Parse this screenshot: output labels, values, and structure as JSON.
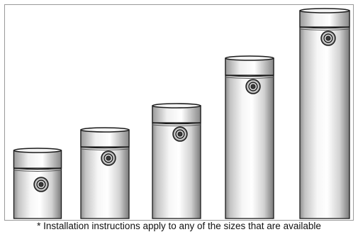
{
  "figure": {
    "caption": "* Installation instructions apply to any of the sizes that are available",
    "subject_icon": "standoff-cylinder-icon",
    "item_count": 5,
    "colors": {
      "body": "#d8d8d8",
      "outline": "#1c1c1c",
      "frame": "#9a9a9a",
      "background": "#ffffff"
    }
  }
}
